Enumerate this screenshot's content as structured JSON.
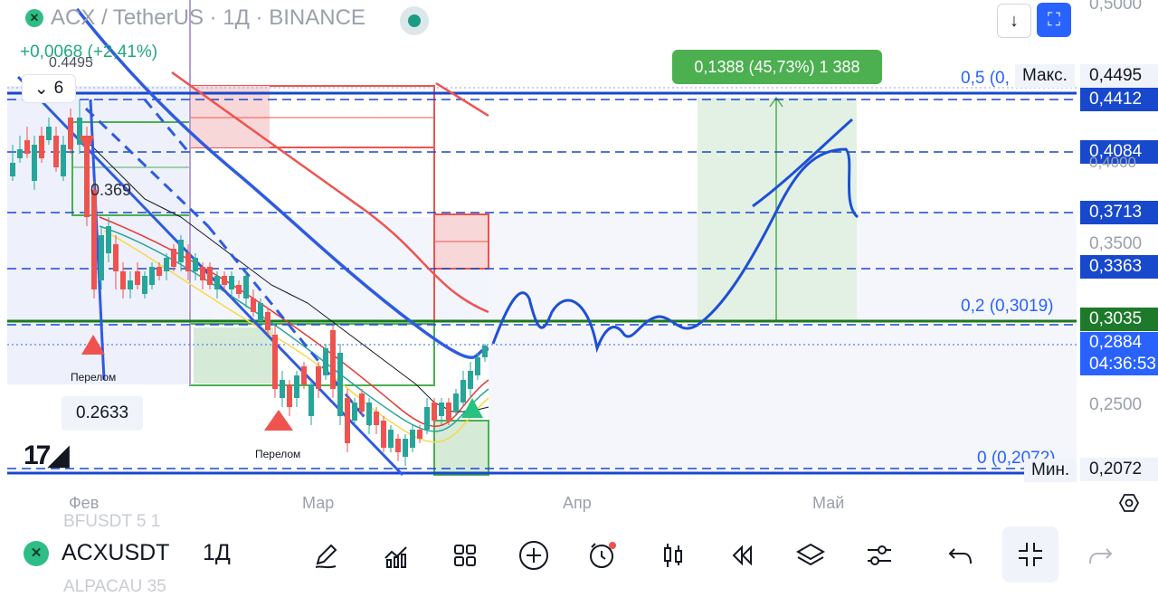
{
  "header": {
    "symbol_title": "ACX / TetherUS · 1Д · BINANCE",
    "change": "+0,0068 (+2,41%)",
    "high_label": "0.4495",
    "collapse_count": "6"
  },
  "chart_labels": {
    "label_369": "0.369",
    "label_2633": "0.2633",
    "perelom_1": "Перелом",
    "perelom_2": "Перелом",
    "measure": "0,1388 (45,73%) 1 388"
  },
  "fib": {
    "level_05": "0,5 (0,",
    "level_02": "0,2 (0,3019)",
    "level_0": "0 (0,2072)"
  },
  "max_label": "Макс.",
  "min_label": "Мин.",
  "price_axis": {
    "p5000": "0,5000",
    "p4495": "0,4495",
    "p4412": "0,4412",
    "p4084": "0,4084",
    "p4000": "0,4000",
    "p3713": "0,3713",
    "p3500": "0,3500",
    "p3363": "0,3363",
    "p3035": "0,3035",
    "p2884": "0,2884",
    "countdown": "04:36:53",
    "p2500": "0,2500",
    "p2072": "0,2072"
  },
  "time_axis": {
    "feb": "Фев",
    "mar": "Мар",
    "apr": "Апр",
    "may": "Май"
  },
  "toolbar": {
    "symbol": "ACXUSDT",
    "interval": "1Д",
    "ghost_top": "BFUSDT    5 1",
    "ghost_bottom": "ALPACAU   35"
  },
  "colors": {
    "up": "#26a69a",
    "down": "#ef5350",
    "accent": "#2962ff",
    "drawing": "#1e4fd6"
  },
  "icons": [
    "pencil-icon",
    "indicators-icon",
    "templates-icon",
    "add-icon",
    "alert-clock-icon",
    "candles-icon",
    "replay-icon",
    "layers-icon",
    "settings-sliders-icon",
    "undo-icon",
    "collapse-icon",
    "redo-icon"
  ]
}
